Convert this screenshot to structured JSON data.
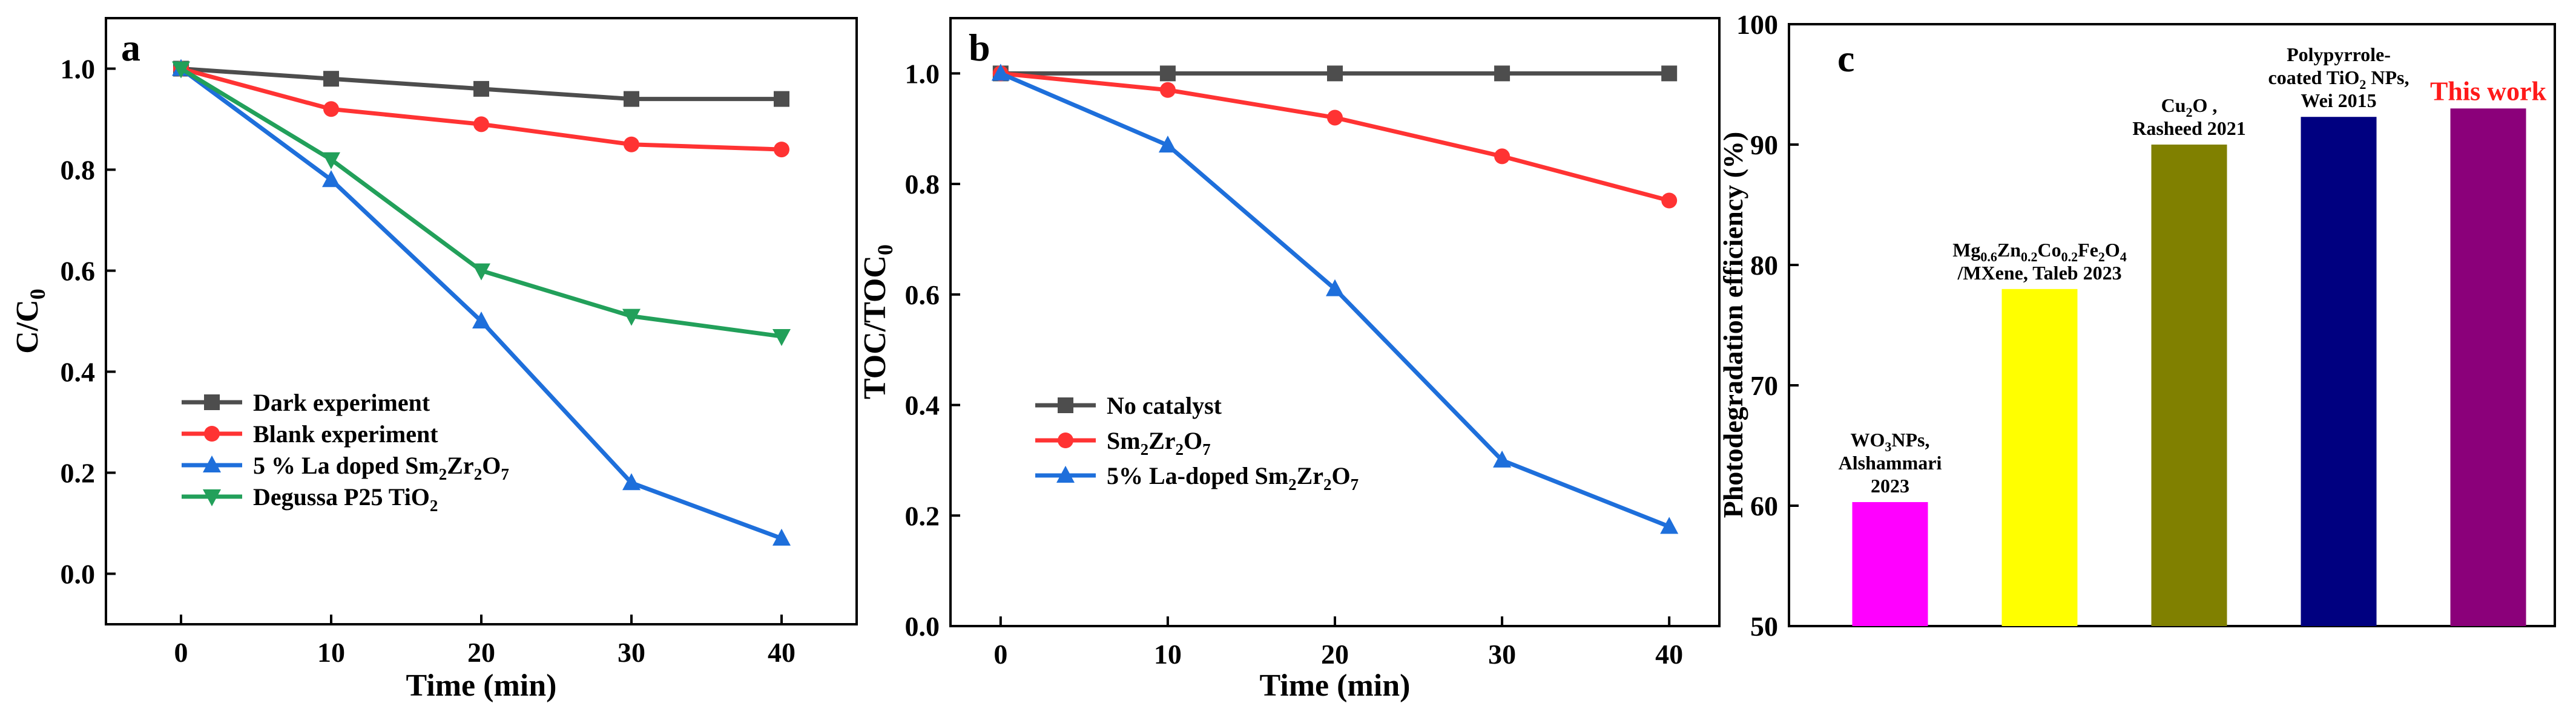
{
  "chart_data": [
    {
      "panel_label": "a",
      "type": "line",
      "title": "",
      "xlabel": "Time (min)",
      "ylabel": "C/C0",
      "ylabel_main": "C/C",
      "ylabel_sub": "0",
      "xlim": [
        -5,
        45
      ],
      "ylim": [
        -0.1,
        1.1
      ],
      "x_ticks": [
        0,
        10,
        20,
        30,
        40
      ],
      "y_ticks": [
        0.0,
        0.2,
        0.4,
        0.6,
        0.8,
        1.0
      ],
      "x_tick_labels": [
        "0",
        "10",
        "20",
        "30",
        "40"
      ],
      "y_tick_labels": [
        "0.0",
        "0.2",
        "0.4",
        "0.6",
        "0.8",
        "1.0"
      ],
      "legend_position": "bottom-left",
      "x": [
        0,
        10,
        20,
        30,
        40
      ],
      "series": [
        {
          "name": "Dark experiment",
          "legend": [
            {
              "t": "Dark experiment"
            }
          ],
          "color": "#4d4d4d",
          "marker": "square",
          "values": [
            1.0,
            0.98,
            0.96,
            0.94,
            0.94
          ]
        },
        {
          "name": "Blank experiment",
          "legend": [
            {
              "t": "Blank experiment"
            }
          ],
          "color": "#ff3333",
          "marker": "circle",
          "values": [
            1.0,
            0.92,
            0.89,
            0.85,
            0.84
          ]
        },
        {
          "name": "5 % La doped Sm2Zr2O7",
          "legend": [
            {
              "t": "5 % La doped Sm"
            },
            {
              "t": "2",
              "sub": true
            },
            {
              "t": "Zr"
            },
            {
              "t": "2",
              "sub": true
            },
            {
              "t": "O"
            },
            {
              "t": "7",
              "sub": true
            }
          ],
          "color": "#1e6fdb",
          "marker": "triangle-up",
          "values": [
            1.0,
            0.78,
            0.5,
            0.18,
            0.07
          ]
        },
        {
          "name": "Degussa P25 TiO2",
          "legend": [
            {
              "t": "Degussa P25 TiO"
            },
            {
              "t": "2",
              "sub": true
            }
          ],
          "color": "#22a05a",
          "marker": "triangle-down",
          "values": [
            1.0,
            0.82,
            0.6,
            0.51,
            0.47
          ]
        }
      ]
    },
    {
      "panel_label": "b",
      "type": "line",
      "title": "",
      "xlabel": "Time (min)",
      "ylabel": "TOC/TOC0",
      "ylabel_main": "TOC/TOC",
      "ylabel_sub": "0",
      "xlim": [
        -3,
        43
      ],
      "ylim": [
        0.0,
        1.1
      ],
      "x_ticks": [
        0,
        10,
        20,
        30,
        40
      ],
      "y_ticks": [
        0.0,
        0.2,
        0.4,
        0.6,
        0.8,
        1.0
      ],
      "x_tick_labels": [
        "0",
        "10",
        "20",
        "30",
        "40"
      ],
      "y_tick_labels": [
        "0.0",
        "0.2",
        "0.4",
        "0.6",
        "0.8",
        "1.0"
      ],
      "legend_position": "bottom-left",
      "x": [
        0,
        10,
        20,
        30,
        40
      ],
      "series": [
        {
          "name": "No catalyst",
          "legend": [
            {
              "t": "No catalyst"
            }
          ],
          "color": "#4d4d4d",
          "marker": "square",
          "values": [
            1.0,
            1.0,
            1.0,
            1.0,
            1.0
          ]
        },
        {
          "name": "Sm2Zr2O7",
          "legend": [
            {
              "t": "Sm"
            },
            {
              "t": "2",
              "sub": true
            },
            {
              "t": "Zr"
            },
            {
              "t": "2",
              "sub": true
            },
            {
              "t": "O"
            },
            {
              "t": "7",
              "sub": true
            }
          ],
          "color": "#ff3333",
          "marker": "circle",
          "values": [
            1.0,
            0.97,
            0.92,
            0.85,
            0.77
          ]
        },
        {
          "name": "5% La-doped Sm2Zr2O7",
          "legend": [
            {
              "t": "5% La-doped Sm"
            },
            {
              "t": "2",
              "sub": true
            },
            {
              "t": "Zr"
            },
            {
              "t": "2",
              "sub": true
            },
            {
              "t": "O"
            },
            {
              "t": "7",
              "sub": true
            }
          ],
          "color": "#1e6fdb",
          "marker": "triangle-up",
          "values": [
            1.0,
            0.87,
            0.61,
            0.3,
            0.18
          ]
        }
      ]
    },
    {
      "panel_label": "c",
      "type": "bar",
      "title": "",
      "xlabel": "",
      "ylabel": "Photodegradation efficiency (%)",
      "ylim": [
        50,
        100
      ],
      "y_ticks": [
        50,
        60,
        70,
        80,
        90,
        100
      ],
      "y_tick_labels": [
        "50",
        "60",
        "70",
        "80",
        "90",
        "100"
      ],
      "categories": [
        "WO3NPs, Alshammari 2023",
        "Mg0.6Zn0.2Co0.2Fe2O4/MXene, Taleb 2023",
        "Cu2O, Rasheed 2021",
        "Polypyrrole-coated TiO2 NPs, Wei 2015",
        "This work"
      ],
      "values": [
        60.3,
        78,
        90,
        92.3,
        93
      ],
      "colors": [
        "#ff00ff",
        "#ffff00",
        "#808000",
        "#000080",
        "#8b007a"
      ],
      "bar_labels": [
        {
          "color": "#000000",
          "lines": [
            [
              {
                "t": "WO"
              },
              {
                "t": "3",
                "sub": true
              },
              {
                "t": "NPs,"
              }
            ],
            [
              {
                "t": "Alshammari"
              }
            ],
            [
              {
                "t": "2023"
              }
            ]
          ]
        },
        {
          "color": "#000000",
          "lines": [
            [
              {
                "t": "Mg"
              },
              {
                "t": "0.6",
                "sub": true
              },
              {
                "t": "Zn"
              },
              {
                "t": "0.2",
                "sub": true
              },
              {
                "t": "Co"
              },
              {
                "t": "0.2",
                "sub": true
              },
              {
                "t": "Fe"
              },
              {
                "t": "2",
                "sub": true
              },
              {
                "t": "O"
              },
              {
                "t": "4",
                "sub": true
              }
            ],
            [
              {
                "t": "/MXene, Taleb 2023"
              }
            ]
          ]
        },
        {
          "color": "#000000",
          "lines": [
            [
              {
                "t": "Cu"
              },
              {
                "t": "2",
                "sub": true
              },
              {
                "t": "O ,"
              }
            ],
            [
              {
                "t": "Rasheed 2021"
              }
            ]
          ]
        },
        {
          "color": "#000000",
          "lines": [
            [
              {
                "t": "Polypyrrole-"
              }
            ],
            [
              {
                "t": "coated TiO"
              },
              {
                "t": "2",
                "sub": true
              },
              {
                "t": " NPs,"
              }
            ],
            [
              {
                "t": "Wei 2015"
              }
            ]
          ]
        },
        {
          "color": "#ff1a1a",
          "lines": [
            [
              {
                "t": "This work"
              }
            ]
          ]
        }
      ]
    }
  ]
}
